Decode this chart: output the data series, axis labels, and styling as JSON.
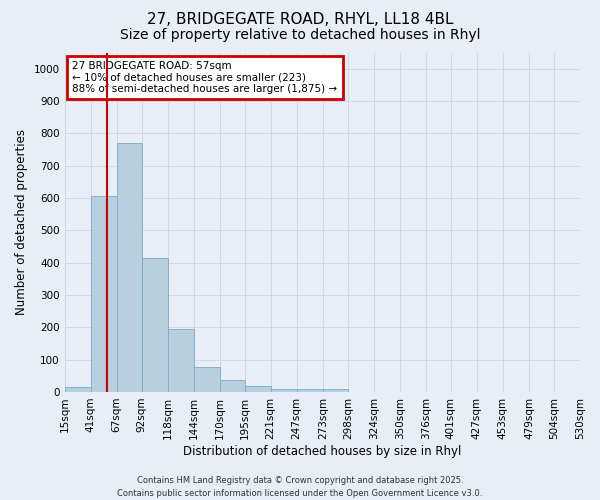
{
  "title_line1": "27, BRIDGEGATE ROAD, RHYL, LL18 4BL",
  "title_line2": "Size of property relative to detached houses in Rhyl",
  "xlabel": "Distribution of detached houses by size in Rhyl",
  "ylabel": "Number of detached properties",
  "bin_edges": [
    15,
    41,
    67,
    92,
    118,
    144,
    170,
    195,
    221,
    247,
    273,
    298,
    324,
    350,
    376,
    401,
    427,
    453,
    479,
    504,
    530
  ],
  "bar_heights": [
    15,
    607,
    770,
    415,
    195,
    78,
    38,
    18,
    10,
    10,
    10,
    0,
    0,
    0,
    0,
    0,
    0,
    0,
    0,
    0
  ],
  "bar_color": "#b8cfe0",
  "bar_edge_color": "#7aaac8",
  "property_line_x": 57,
  "property_line_color": "#cc0000",
  "annotation_text": "27 BRIDGEGATE ROAD: 57sqm\n← 10% of detached houses are smaller (223)\n88% of semi-detached houses are larger (1,875) →",
  "annotation_box_color": "#cc0000",
  "annotation_bg": "#ffffff",
  "ylim": [
    0,
    1050
  ],
  "yticks": [
    0,
    100,
    200,
    300,
    400,
    500,
    600,
    700,
    800,
    900,
    1000
  ],
  "grid_color": "#d0d8e4",
  "background_color": "#e8eef5",
  "footer_line1": "Contains HM Land Registry data © Crown copyright and database right 2025.",
  "footer_line2": "Contains public sector information licensed under the Open Government Licence v3.0.",
  "title_fontsize": 11,
  "subtitle_fontsize": 10,
  "axis_label_fontsize": 8.5,
  "tick_fontsize": 7.5,
  "annotation_fontsize": 7.5,
  "footer_fontsize": 6
}
